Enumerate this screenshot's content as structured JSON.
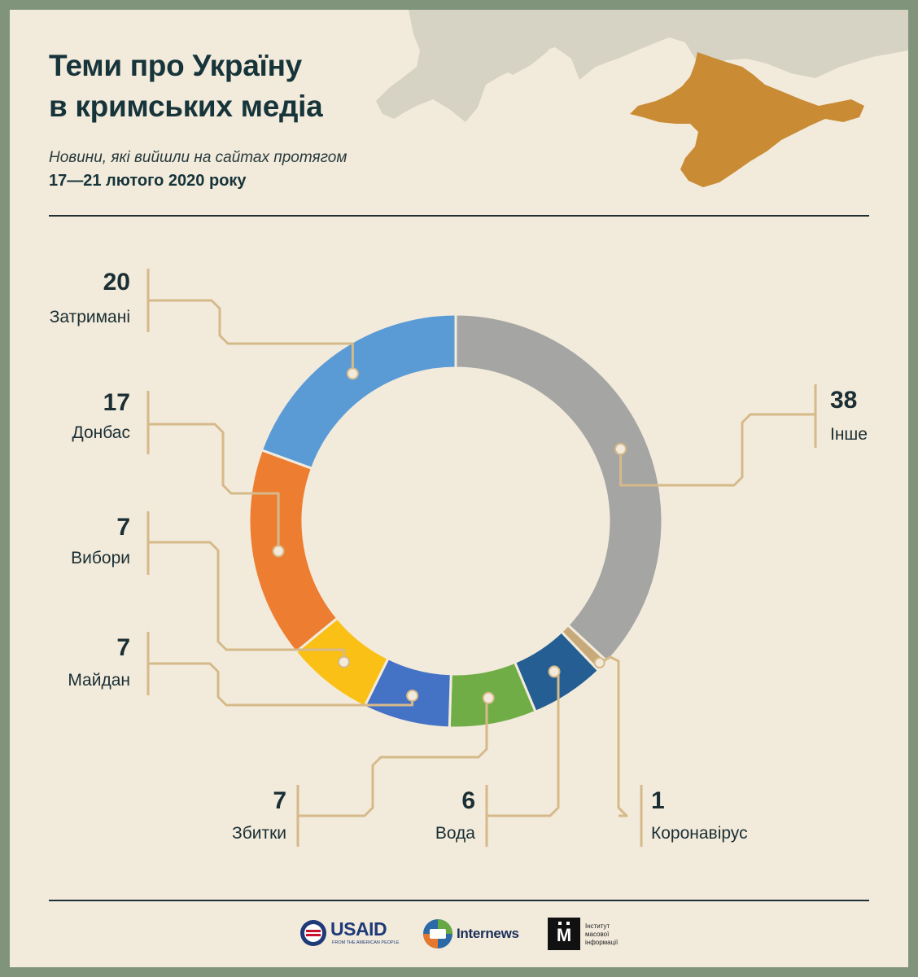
{
  "header": {
    "title_line1": "Теми про Україну",
    "title_line2": "в кримських медіа",
    "subtitle_line1": "Новини, які вийшли на сайтах протягом",
    "subtitle_line2": "17—21 лютого 2020 року"
  },
  "colors": {
    "frame": "#80947c",
    "background": "#f2ebdc",
    "leader_line": "#d6b989",
    "crimea": "#c98b34",
    "mainland": "#d6d3c4"
  },
  "chart_data": {
    "type": "pie",
    "style": "donut",
    "start": "top, clockwise",
    "slices": [
      {
        "label": "Інше",
        "value": 38,
        "color": "#a5a5a4"
      },
      {
        "label": "Коронавірус",
        "value": 1,
        "color": "#c8a97a"
      },
      {
        "label": "Вода",
        "value": 6,
        "color": "#245e93"
      },
      {
        "label": "Збитки",
        "value": 7,
        "color": "#70ad47"
      },
      {
        "label": "Майдан",
        "value": 7,
        "color": "#4472c4"
      },
      {
        "label": "Вибори",
        "value": 7,
        "color": "#fbc015"
      },
      {
        "label": "Донбас",
        "value": 17,
        "color": "#ed7d31"
      },
      {
        "label": "Затримані",
        "value": 20,
        "color": "#5b9bd5"
      }
    ]
  },
  "logos": {
    "usaid": "USAID",
    "usaid_tagline": "FROM THE AMERICAN PEOPLE",
    "internews": "Internews",
    "imi_line1": "Інститут",
    "imi_line2": "масової",
    "imi_line3": "інформації"
  }
}
